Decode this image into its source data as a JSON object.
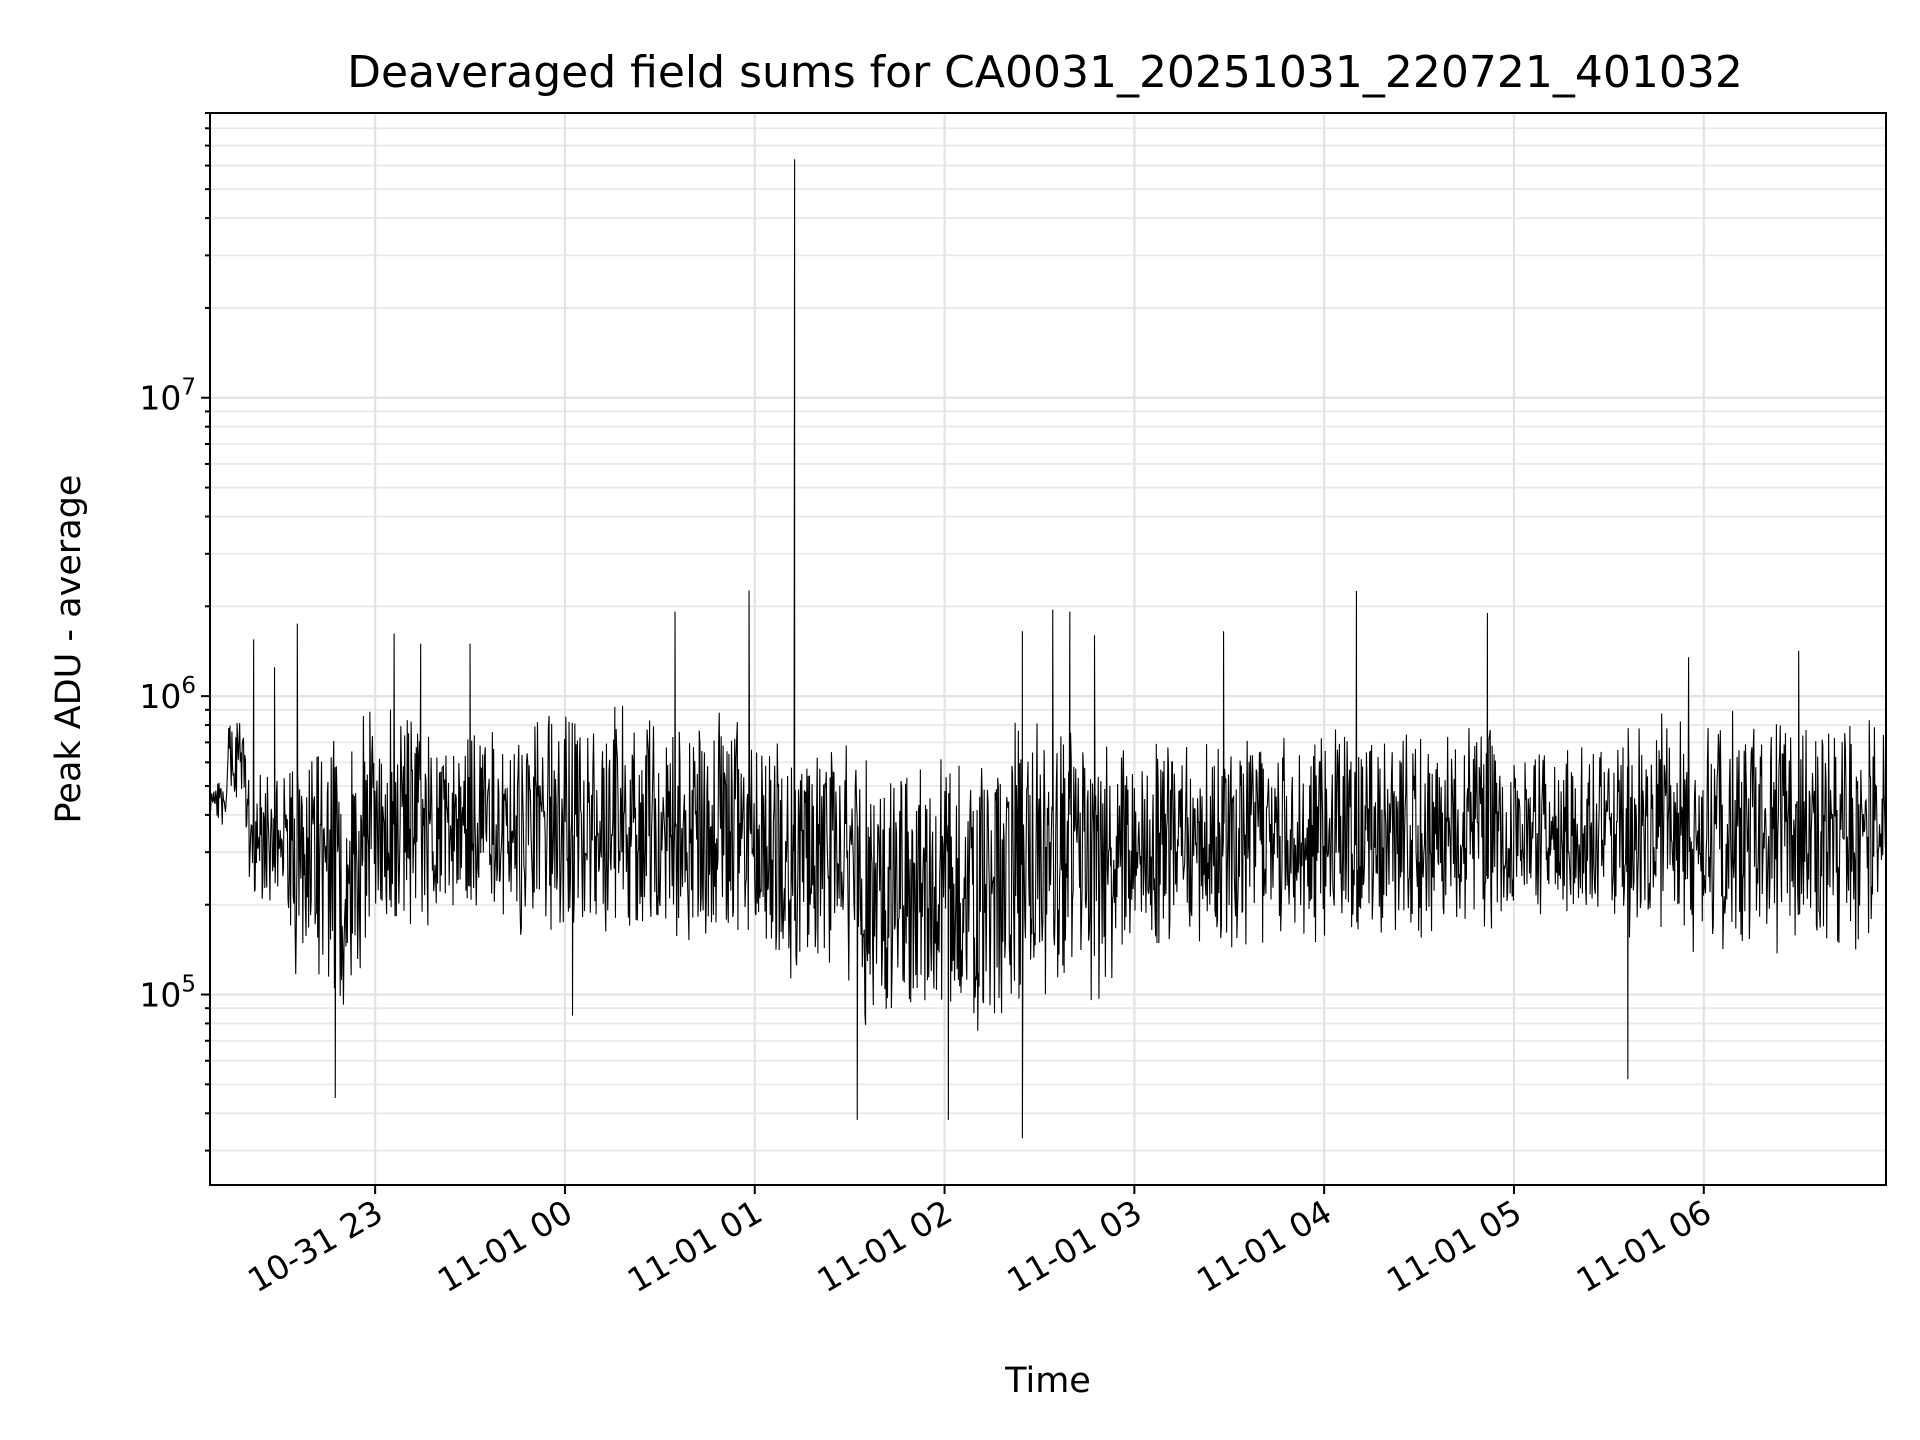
{
  "chart_data": {
    "type": "line",
    "title": "Deaveraged field sums for CA0031_20251031_220721_401032",
    "xlabel": "Time",
    "ylabel": "Peak ADU - average",
    "yscale": "log",
    "ylim": [
      23000,
      90000000
    ],
    "xlim_hours_after_10_31_22_00": [
      0.13,
      8.96
    ],
    "grid": true,
    "xticks": [
      {
        "label": "10-31 23",
        "hours": 1
      },
      {
        "label": "11-01 00",
        "hours": 2
      },
      {
        "label": "11-01 01",
        "hours": 3
      },
      {
        "label": "11-01 02",
        "hours": 4
      },
      {
        "label": "11-01 03",
        "hours": 5
      },
      {
        "label": "11-01 04",
        "hours": 6
      },
      {
        "label": "11-01 05",
        "hours": 7
      },
      {
        "label": "11-01 06",
        "hours": 8
      }
    ],
    "yticks": [
      {
        "base": "10",
        "exp": "5",
        "value": 100000
      },
      {
        "base": "10",
        "exp": "6",
        "value": 1000000
      },
      {
        "base": "10",
        "exp": "7",
        "value": 10000000
      }
    ],
    "series": [
      {
        "name": "Peak ADU - average",
        "color": "#000000",
        "segments": [
          {
            "start_hours": 0.13,
            "end_hours": 0.22,
            "low": 350000,
            "high": 550000
          },
          {
            "start_hours": 0.22,
            "end_hours": 0.32,
            "low": 400000,
            "high": 950000
          },
          {
            "start_hours": 0.32,
            "end_hours": 0.55,
            "low": 160000,
            "high": 700000
          },
          {
            "start_hours": 0.55,
            "end_hours": 0.95,
            "low": 70000,
            "high": 1100000
          },
          {
            "start_hours": 0.95,
            "end_hours": 1.3,
            "low": 130000,
            "high": 1100000
          },
          {
            "start_hours": 1.3,
            "end_hours": 1.75,
            "low": 150000,
            "high": 900000
          },
          {
            "start_hours": 1.75,
            "end_hours": 2.4,
            "low": 120000,
            "high": 1150000
          },
          {
            "start_hours": 2.4,
            "end_hours": 3.0,
            "low": 110000,
            "high": 1200000
          },
          {
            "start_hours": 3.0,
            "end_hours": 3.55,
            "low": 90000,
            "high": 900000
          },
          {
            "start_hours": 3.55,
            "end_hours": 4.35,
            "low": 60000,
            "high": 850000
          },
          {
            "start_hours": 4.35,
            "end_hours": 4.9,
            "low": 70000,
            "high": 1100000
          },
          {
            "start_hours": 4.9,
            "end_hours": 5.6,
            "low": 110000,
            "high": 900000
          },
          {
            "start_hours": 5.6,
            "end_hours": 6.9,
            "low": 120000,
            "high": 1000000
          },
          {
            "start_hours": 6.9,
            "end_hours": 7.6,
            "low": 150000,
            "high": 800000
          },
          {
            "start_hours": 7.6,
            "end_hours": 8.96,
            "low": 110000,
            "high": 1100000
          }
        ],
        "peaks": [
          {
            "hours": 0.36,
            "value": 1550000
          },
          {
            "hours": 0.47,
            "value": 1250000
          },
          {
            "hours": 0.59,
            "value": 1750000
          },
          {
            "hours": 0.79,
            "value": 45000
          },
          {
            "hours": 1.1,
            "value": 1620000
          },
          {
            "hours": 1.24,
            "value": 1500000
          },
          {
            "hours": 1.5,
            "value": 1500000
          },
          {
            "hours": 2.04,
            "value": 85000
          },
          {
            "hours": 2.58,
            "value": 1920000
          },
          {
            "hours": 2.97,
            "value": 2260000
          },
          {
            "hours": 3.21,
            "value": 63000000
          },
          {
            "hours": 3.54,
            "value": 38000
          },
          {
            "hours": 4.02,
            "value": 38000
          },
          {
            "hours": 4.41,
            "value": 1650000
          },
          {
            "hours": 4.41,
            "value": 33000
          },
          {
            "hours": 4.57,
            "value": 1950000
          },
          {
            "hours": 4.66,
            "value": 1920000
          },
          {
            "hours": 4.79,
            "value": 1600000
          },
          {
            "hours": 5.47,
            "value": 1650000
          },
          {
            "hours": 6.17,
            "value": 2250000
          },
          {
            "hours": 6.86,
            "value": 1900000
          },
          {
            "hours": 7.6,
            "value": 52000
          },
          {
            "hours": 7.92,
            "value": 1350000
          },
          {
            "hours": 8.5,
            "value": 1420000
          }
        ]
      }
    ]
  }
}
